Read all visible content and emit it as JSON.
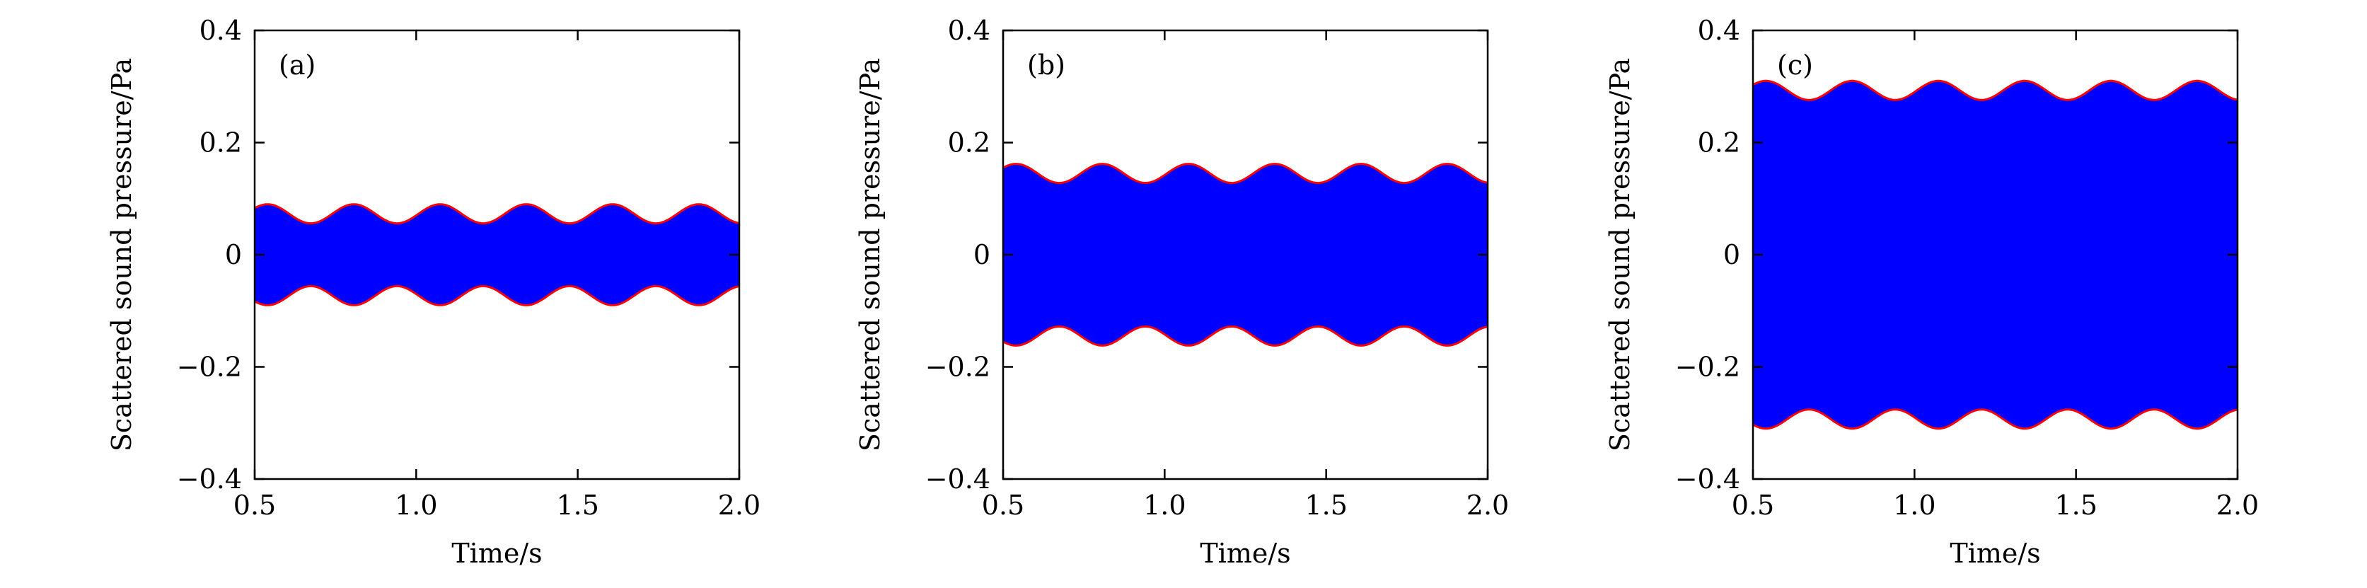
{
  "chart_data": [
    {
      "type": "area",
      "panel_label": "(a)",
      "xlabel": "Time/s",
      "ylabel": "Scattered sound pressure/Pa",
      "xlim": [
        0.5,
        2.0
      ],
      "ylim": [
        -0.4,
        0.4
      ],
      "x_ticks": [
        0.5,
        1.0,
        1.5,
        2.0
      ],
      "x_tick_labels": [
        "0.5",
        "1.0",
        "1.5",
        "2.0"
      ],
      "y_ticks": [
        -0.4,
        -0.2,
        0,
        0.2,
        0.4
      ],
      "y_tick_labels": [
        "−0.4",
        "−0.2",
        "0",
        "0.2",
        "0.4"
      ],
      "envelope": {
        "mean": 0.073,
        "amplitude": 0.017,
        "period": 0.267,
        "first_peak_x": 0.54
      },
      "fill_color": "#0000ff",
      "envelope_color": "#ff0000",
      "grid": false
    },
    {
      "type": "area",
      "panel_label": "(b)",
      "xlabel": "Time/s",
      "ylabel": "Scattered sound pressure/Pa",
      "xlim": [
        0.5,
        2.0
      ],
      "ylim": [
        -0.4,
        0.4
      ],
      "x_ticks": [
        0.5,
        1.0,
        1.5,
        2.0
      ],
      "x_tick_labels": [
        "0.5",
        "1.0",
        "1.5",
        "2.0"
      ],
      "y_ticks": [
        -0.4,
        -0.2,
        0,
        0.2,
        0.4
      ],
      "y_tick_labels": [
        "−0.4",
        "−0.2",
        "0",
        "0.2",
        "0.4"
      ],
      "envelope": {
        "mean": 0.145,
        "amplitude": 0.017,
        "period": 0.267,
        "first_peak_x": 0.54
      },
      "fill_color": "#0000ff",
      "envelope_color": "#ff0000",
      "grid": false
    },
    {
      "type": "area",
      "panel_label": "(c)",
      "xlabel": "Time/s",
      "ylabel": "Scattered sound pressure/Pa",
      "xlim": [
        0.5,
        2.0
      ],
      "ylim": [
        -0.4,
        0.4
      ],
      "x_ticks": [
        0.5,
        1.0,
        1.5,
        2.0
      ],
      "x_tick_labels": [
        "0.5",
        "1.0",
        "1.5",
        "2.0"
      ],
      "y_ticks": [
        -0.4,
        -0.2,
        0,
        0.2,
        0.4
      ],
      "y_tick_labels": [
        "−0.4",
        "−0.2",
        "0",
        "0.2",
        "0.4"
      ],
      "envelope": {
        "mean": 0.293,
        "amplitude": 0.017,
        "period": 0.267,
        "first_peak_x": 0.54
      },
      "fill_color": "#0000ff",
      "envelope_color": "#ff0000",
      "grid": false
    }
  ]
}
